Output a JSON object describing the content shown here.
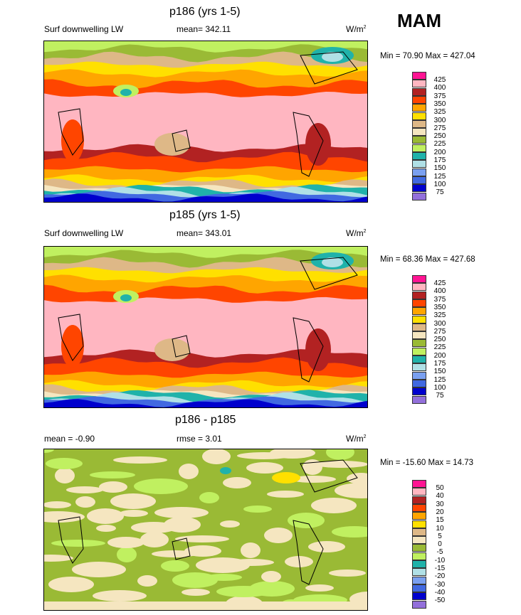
{
  "season": "MAM",
  "colors": [
    "#ff1493",
    "#ffb6c1",
    "#b22222",
    "#ff4500",
    "#ffa500",
    "#ffe000",
    "#deb887",
    "#f5e6c0",
    "#9aba35",
    "#c0f060",
    "#20b2aa",
    "#b0e0e6",
    "#7aa0f0",
    "#4169e1",
    "#0000cd",
    "#9370db"
  ],
  "panels": [
    {
      "title": "p186 (yrs 1-5)",
      "left": "Surf downwelling LW",
      "center": "mean= 342.11",
      "units": "W/m",
      "units_sup": "2",
      "minmax": "Min =  70.90 Max = 427.04"
    },
    {
      "title": "p185 (yrs 1-5)",
      "left": "Surf downwelling LW",
      "center": "mean= 343.01",
      "units": "W/m",
      "units_sup": "2",
      "minmax": "Min =  68.36 Max = 427.68"
    },
    {
      "title": "p186 - p185",
      "left": "mean =  -0.90",
      "center": "rmse =   3.01",
      "units": "W/m",
      "units_sup": "2",
      "minmax": "Min = -15.60 Max =  14.73"
    }
  ],
  "chart_data": [
    {
      "type": "heatmap",
      "title": "p186 (yrs 1-5)",
      "variable": "Surf downwelling LW",
      "units": "W/m2",
      "mean": 342.11,
      "min": 70.9,
      "max": 427.04,
      "levels": [
        425,
        400,
        375,
        350,
        325,
        300,
        275,
        250,
        225,
        200,
        175,
        150,
        125,
        100,
        75
      ]
    },
    {
      "type": "heatmap",
      "title": "p185 (yrs 1-5)",
      "variable": "Surf downwelling LW",
      "units": "W/m2",
      "mean": 343.01,
      "min": 68.36,
      "max": 427.68,
      "levels": [
        425,
        400,
        375,
        350,
        325,
        300,
        275,
        250,
        225,
        200,
        175,
        150,
        125,
        100,
        75
      ]
    },
    {
      "type": "heatmap",
      "title": "p186 - p185",
      "units": "W/m2",
      "mean": -0.9,
      "rmse": 3.01,
      "min": -15.6,
      "max": 14.73,
      "levels": [
        50,
        40,
        30,
        20,
        15,
        10,
        5,
        0,
        -5,
        -10,
        -15,
        -20,
        -30,
        -40,
        -50
      ]
    }
  ]
}
